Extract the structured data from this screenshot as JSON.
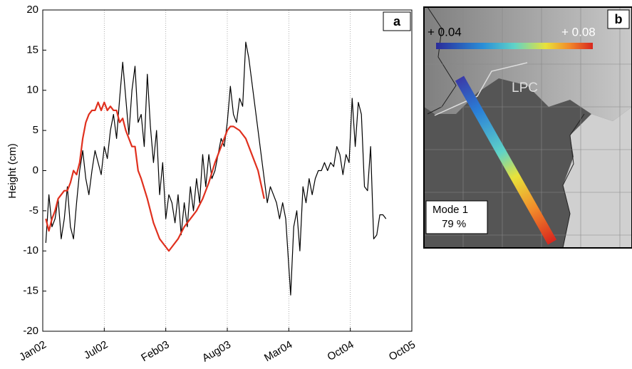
{
  "chart_data": {
    "type": "line",
    "panel_label": "a",
    "y_label": "Height (cm)",
    "xlim": [
      0,
      6
    ],
    "ylim": [
      -20,
      20
    ],
    "xticks": [
      {
        "value": 0,
        "label": "Jan02"
      },
      {
        "value": 1,
        "label": "Jul02"
      },
      {
        "value": 2,
        "label": "Feb03"
      },
      {
        "value": 3,
        "label": "Aug03"
      },
      {
        "value": 4,
        "label": "Mar04"
      },
      {
        "value": 5,
        "label": "Oct04"
      },
      {
        "value": 6,
        "label": "Oct05"
      }
    ],
    "yticks": [
      -20,
      -15,
      -10,
      -5,
      0,
      5,
      10,
      15,
      20
    ],
    "grid": "x",
    "series": [
      {
        "color": "#000000",
        "x": [
          0.05,
          0.1,
          0.15,
          0.2,
          0.25,
          0.3,
          0.35,
          0.4,
          0.45,
          0.5,
          0.55,
          0.6,
          0.65,
          0.7,
          0.75,
          0.8,
          0.85,
          0.9,
          0.95,
          1.0,
          1.05,
          1.1,
          1.15,
          1.2,
          1.25,
          1.3,
          1.35,
          1.4,
          1.45,
          1.5,
          1.55,
          1.6,
          1.65,
          1.7,
          1.75,
          1.8,
          1.85,
          1.9,
          1.95,
          2.0,
          2.05,
          2.1,
          2.15,
          2.2,
          2.25,
          2.3,
          2.35,
          2.4,
          2.45,
          2.5,
          2.55,
          2.6,
          2.65,
          2.7,
          2.75,
          2.8,
          2.85,
          2.9,
          2.95,
          3.0,
          3.05,
          3.1,
          3.15,
          3.2,
          3.25,
          3.3,
          3.35,
          3.4,
          3.45,
          3.5,
          3.55,
          3.6,
          3.65,
          3.7,
          3.75,
          3.8,
          3.85,
          3.9,
          3.95,
          4.03,
          4.08,
          4.13,
          4.18,
          4.23,
          4.28,
          4.33,
          4.38,
          4.43,
          4.48,
          4.53,
          4.58,
          4.63,
          4.68,
          4.73,
          4.78,
          4.83,
          4.88,
          4.93,
          4.98,
          5.03,
          5.08,
          5.13,
          5.18,
          5.23,
          5.28,
          5.33,
          5.38,
          5.43,
          5.48,
          5.53,
          5.58
        ],
        "values": [
          -9,
          -3,
          -7,
          -6,
          -3.5,
          -8.5,
          -6,
          -2,
          -7,
          -8.5,
          -4,
          0,
          2.5,
          -1,
          -3,
          0,
          2.5,
          1,
          -0.5,
          3,
          1.5,
          5,
          7,
          4,
          9,
          13.5,
          9,
          4.5,
          10,
          13,
          6,
          7,
          3,
          12,
          5.5,
          1,
          5,
          -3,
          1,
          -6,
          -3,
          -4,
          -6.5,
          -3,
          -8,
          -4,
          -7,
          -2,
          -5,
          -1,
          -4,
          2,
          -2,
          2,
          -1,
          0,
          2,
          4,
          3,
          6,
          10.5,
          7,
          6,
          9,
          8,
          16,
          14,
          11,
          8,
          5,
          2,
          -1,
          -4,
          -2,
          -3,
          -4,
          -6,
          -4,
          -6,
          -15.5,
          -7,
          -5,
          -10,
          -2,
          -4,
          -1,
          -3,
          -1,
          0,
          0,
          1,
          0,
          1,
          0.5,
          3,
          2,
          -0.5,
          2,
          1,
          9,
          3,
          8.5,
          7,
          -2,
          -2.5,
          3,
          -8.5,
          -8,
          -5.5,
          -5.5,
          -6
        ]
      },
      {
        "color": "#e0301e",
        "x": [
          0.05,
          0.1,
          0.15,
          0.2,
          0.25,
          0.3,
          0.35,
          0.4,
          0.45,
          0.5,
          0.55,
          0.6,
          0.65,
          0.7,
          0.75,
          0.8,
          0.85,
          0.9,
          0.95,
          1.0,
          1.05,
          1.1,
          1.15,
          1.2,
          1.25,
          1.3,
          1.35,
          1.4,
          1.45,
          1.5,
          1.55,
          1.6,
          1.7,
          1.8,
          1.9,
          2.0,
          2.05,
          2.1,
          2.2,
          2.3,
          2.4,
          2.5,
          2.6,
          2.7,
          2.8,
          2.9,
          3.0,
          3.05,
          3.1,
          3.2,
          3.3,
          3.4,
          3.5,
          3.6
        ],
        "values": [
          -6,
          -7.5,
          -6,
          -5,
          -3.5,
          -3,
          -2.5,
          -2.5,
          -1.5,
          0,
          -0.5,
          1,
          4,
          6,
          7,
          7.5,
          7.5,
          8.5,
          7.5,
          8.5,
          7.5,
          8,
          7.5,
          7.5,
          6,
          6.5,
          5,
          4,
          3,
          3,
          0,
          -1,
          -3.5,
          -6.5,
          -8.5,
          -9.5,
          -10,
          -9.5,
          -8.5,
          -7,
          -6,
          -5,
          -3.5,
          -1.5,
          1,
          3,
          5,
          5.5,
          5.5,
          5,
          4,
          2,
          0,
          -3.5
        ]
      }
    ]
  },
  "panel_b": {
    "panel_label": "b",
    "scale_min": "+ 0.04",
    "scale_max": "+ 0.08",
    "region": "LPC",
    "mode": "Mode 1",
    "percent": "79 %"
  }
}
